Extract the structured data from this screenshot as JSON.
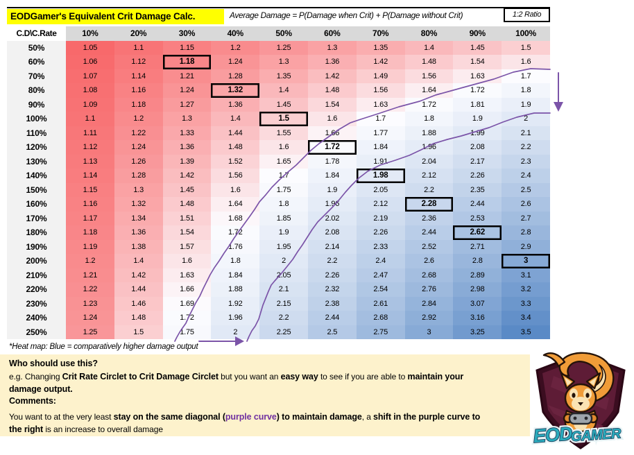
{
  "title": "EODGamer's Equivalent Crit Damage Calc.",
  "formula": "Average Damage = P(Damage when Crit) + P(Damage without Crit)",
  "ratio_badge": "1:2 Ratio",
  "heatmap_note": "*Heat map: Blue = comparatively higher damage output",
  "table": {
    "corner_label": "C.D\\C.Rate",
    "col_headers": [
      "10%",
      "20%",
      "30%",
      "40%",
      "50%",
      "60%",
      "70%",
      "80%",
      "90%",
      "100%"
    ],
    "row_headers": [
      "50%",
      "60%",
      "70%",
      "80%",
      "90%",
      "100%",
      "110%",
      "120%",
      "130%",
      "140%",
      "150%",
      "160%",
      "170%",
      "180%",
      "190%",
      "200%",
      "210%",
      "220%",
      "230%",
      "240%",
      "250%"
    ],
    "rows": [
      [
        "1.05",
        "1.1",
        "1.15",
        "1.2",
        "1.25",
        "1.3",
        "1.35",
        "1.4",
        "1.45",
        "1.5"
      ],
      [
        "1.06",
        "1.12",
        "1.18",
        "1.24",
        "1.3",
        "1.36",
        "1.42",
        "1.48",
        "1.54",
        "1.6"
      ],
      [
        "1.07",
        "1.14",
        "1.21",
        "1.28",
        "1.35",
        "1.42",
        "1.49",
        "1.56",
        "1.63",
        "1.7"
      ],
      [
        "1.08",
        "1.16",
        "1.24",
        "1.32",
        "1.4",
        "1.48",
        "1.56",
        "1.64",
        "1.72",
        "1.8"
      ],
      [
        "1.09",
        "1.18",
        "1.27",
        "1.36",
        "1.45",
        "1.54",
        "1.63",
        "1.72",
        "1.81",
        "1.9"
      ],
      [
        "1.1",
        "1.2",
        "1.3",
        "1.4",
        "1.5",
        "1.6",
        "1.7",
        "1.8",
        "1.9",
        "2"
      ],
      [
        "1.11",
        "1.22",
        "1.33",
        "1.44",
        "1.55",
        "1.66",
        "1.77",
        "1.88",
        "1.99",
        "2.1"
      ],
      [
        "1.12",
        "1.24",
        "1.36",
        "1.48",
        "1.6",
        "1.72",
        "1.84",
        "1.96",
        "2.08",
        "2.2"
      ],
      [
        "1.13",
        "1.26",
        "1.39",
        "1.52",
        "1.65",
        "1.78",
        "1.91",
        "2.04",
        "2.17",
        "2.3"
      ],
      [
        "1.14",
        "1.28",
        "1.42",
        "1.56",
        "1.7",
        "1.84",
        "1.98",
        "2.12",
        "2.26",
        "2.4"
      ],
      [
        "1.15",
        "1.3",
        "1.45",
        "1.6",
        "1.75",
        "1.9",
        "2.05",
        "2.2",
        "2.35",
        "2.5"
      ],
      [
        "1.16",
        "1.32",
        "1.48",
        "1.64",
        "1.8",
        "1.96",
        "2.12",
        "2.28",
        "2.44",
        "2.6"
      ],
      [
        "1.17",
        "1.34",
        "1.51",
        "1.68",
        "1.85",
        "2.02",
        "2.19",
        "2.36",
        "2.53",
        "2.7"
      ],
      [
        "1.18",
        "1.36",
        "1.54",
        "1.72",
        "1.9",
        "2.08",
        "2.26",
        "2.44",
        "2.62",
        "2.8"
      ],
      [
        "1.19",
        "1.38",
        "1.57",
        "1.76",
        "1.95",
        "2.14",
        "2.33",
        "2.52",
        "2.71",
        "2.9"
      ],
      [
        "1.2",
        "1.4",
        "1.6",
        "1.8",
        "2",
        "2.2",
        "2.4",
        "2.6",
        "2.8",
        "3"
      ],
      [
        "1.21",
        "1.42",
        "1.63",
        "1.84",
        "2.05",
        "2.26",
        "2.47",
        "2.68",
        "2.89",
        "3.1"
      ],
      [
        "1.22",
        "1.44",
        "1.66",
        "1.88",
        "2.1",
        "2.32",
        "2.54",
        "2.76",
        "2.98",
        "3.2"
      ],
      [
        "1.23",
        "1.46",
        "1.69",
        "1.92",
        "2.15",
        "2.38",
        "2.61",
        "2.84",
        "3.07",
        "3.3"
      ],
      [
        "1.24",
        "1.48",
        "1.72",
        "1.96",
        "2.2",
        "2.44",
        "2.68",
        "2.92",
        "3.16",
        "3.4"
      ],
      [
        "1.25",
        "1.5",
        "1.75",
        "2",
        "2.25",
        "2.5",
        "2.75",
        "3",
        "3.25",
        "3.5"
      ]
    ],
    "highlight_cells": [
      [
        1,
        2
      ],
      [
        3,
        3
      ],
      [
        5,
        4
      ],
      [
        7,
        5
      ],
      [
        9,
        6
      ],
      [
        11,
        7
      ],
      [
        13,
        8
      ],
      [
        15,
        9
      ]
    ],
    "heat_colors": {
      "min": "#F8696B",
      "mid": "#FCFCFF",
      "max": "#5A8AC6",
      "min_val": 1.05,
      "mid_val": 1.7,
      "max_val": 3.5
    }
  },
  "comments": {
    "lines": [
      {
        "segments": [
          {
            "t": "Who should use this?",
            "b": true
          }
        ]
      },
      {
        "segments": [
          {
            "t": "e.g. Changing ",
            "b": false
          },
          {
            "t": "Crit Rate Circlet to Crit Damage Circlet",
            "b": true
          },
          {
            "t": " but you want an ",
            "b": false
          },
          {
            "t": "easy way",
            "b": true
          },
          {
            "t": " to see if you are able to ",
            "b": false
          },
          {
            "t": "maintain your",
            "b": true
          }
        ]
      },
      {
        "segments": [
          {
            "t": "damage output.",
            "b": true
          }
        ]
      },
      {
        "segments": [
          {
            "t": "Comments:",
            "b": true
          }
        ]
      },
      {
        "segments": [
          {
            "t": "You want to at the very least ",
            "b": false
          },
          {
            "t": "stay on the same diagonal (",
            "b": true
          },
          {
            "t": "purple curve",
            "b": true,
            "c": "#7030A0"
          },
          {
            "t": ") to maintain damage",
            "b": true
          },
          {
            "t": ", a ",
            "b": false
          },
          {
            "t": "shift in the purple curve to",
            "b": true
          }
        ]
      },
      {
        "segments": [
          {
            "t": "the right",
            "b": true
          },
          {
            "t": " is an increase to overall damage",
            "b": false
          }
        ]
      }
    ]
  },
  "logo": {
    "word1": "EOD",
    "word2": "GAMER"
  },
  "accent_colors": {
    "banner_yellow": "#FFFF00",
    "purple_curve": "#7B54A8",
    "purple_text": "#7030A0",
    "comment_bg": "#FDF2CC",
    "logo_teal": "#2BAABC",
    "shield_maroon": "#5E1C36"
  }
}
